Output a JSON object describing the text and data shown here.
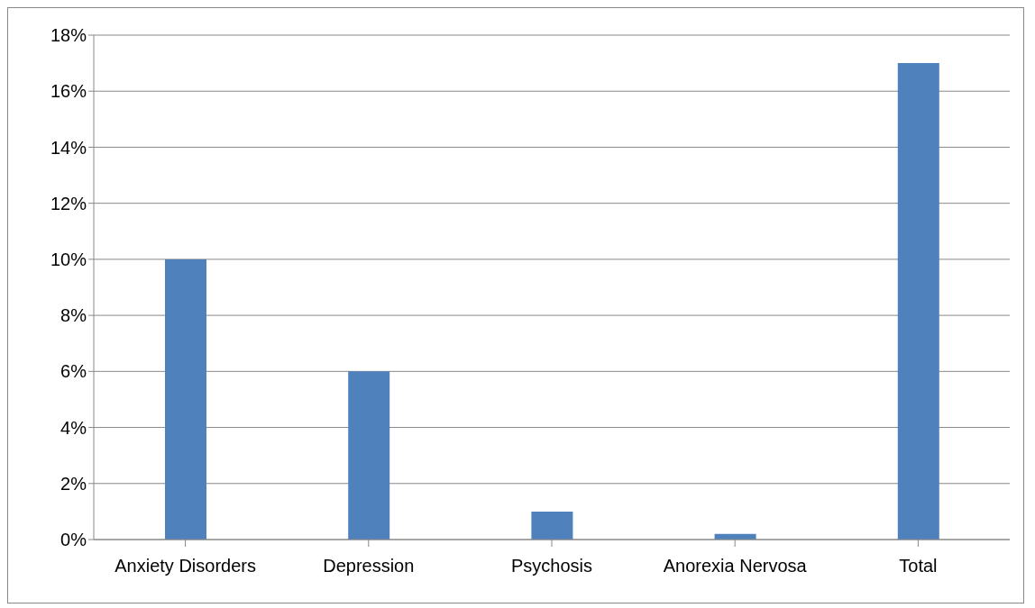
{
  "chart_data": {
    "type": "bar",
    "categories": [
      "Anxiety Disorders",
      "Depression",
      "Psychosis",
      "Anorexia Nervosa",
      "Total"
    ],
    "values": [
      10,
      6,
      1,
      0.2,
      17
    ],
    "color": "#4f81bd",
    "ylim": [
      0,
      18
    ],
    "yticks": [
      {
        "value": 0,
        "label": "0%"
      },
      {
        "value": 2,
        "label": "2%"
      },
      {
        "value": 4,
        "label": "4%"
      },
      {
        "value": 6,
        "label": "6%"
      },
      {
        "value": 8,
        "label": "8%"
      },
      {
        "value": 10,
        "label": "10%"
      },
      {
        "value": 12,
        "label": "12%"
      },
      {
        "value": 14,
        "label": "14%"
      },
      {
        "value": 16,
        "label": "16%"
      },
      {
        "value": 18,
        "label": "18%"
      }
    ],
    "grid": "y"
  }
}
